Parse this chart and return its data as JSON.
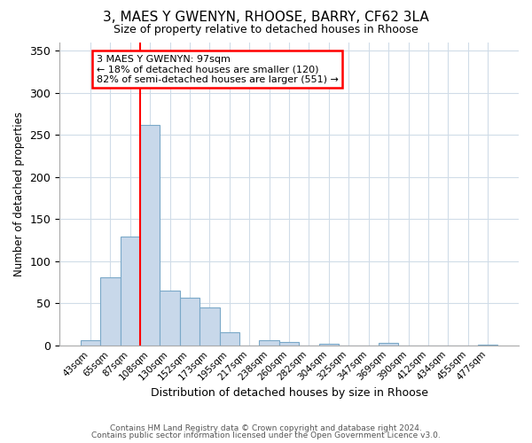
{
  "title1": "3, MAES Y GWENYN, RHOOSE, BARRY, CF62 3LA",
  "title2": "Size of property relative to detached houses in Rhoose",
  "xlabel": "Distribution of detached houses by size in Rhoose",
  "ylabel": "Number of detached properties",
  "bar_labels": [
    "43sqm",
    "65sqm",
    "87sqm",
    "108sqm",
    "130sqm",
    "152sqm",
    "173sqm",
    "195sqm",
    "217sqm",
    "238sqm",
    "260sqm",
    "282sqm",
    "304sqm",
    "325sqm",
    "347sqm",
    "369sqm",
    "390sqm",
    "412sqm",
    "434sqm",
    "455sqm",
    "477sqm"
  ],
  "bar_values": [
    6,
    81,
    129,
    262,
    65,
    56,
    45,
    15,
    0,
    6,
    4,
    0,
    2,
    0,
    0,
    3,
    0,
    0,
    0,
    0,
    1
  ],
  "bar_color": "#c8d8ea",
  "bar_edge_color": "#7aa8c8",
  "vline_color": "red",
  "vline_index": 2.5,
  "ylim": [
    0,
    360
  ],
  "yticks": [
    0,
    50,
    100,
    150,
    200,
    250,
    300,
    350
  ],
  "annotation_title": "3 MAES Y GWENYN: 97sqm",
  "annotation_line1": "← 18% of detached houses are smaller (120)",
  "annotation_line2": "82% of semi-detached houses are larger (551) →",
  "footer1": "Contains HM Land Registry data © Crown copyright and database right 2024.",
  "footer2": "Contains public sector information licensed under the Open Government Licence v3.0.",
  "background_color": "#ffffff",
  "plot_bg_color": "#ffffff",
  "grid_color": "#d0dce8"
}
